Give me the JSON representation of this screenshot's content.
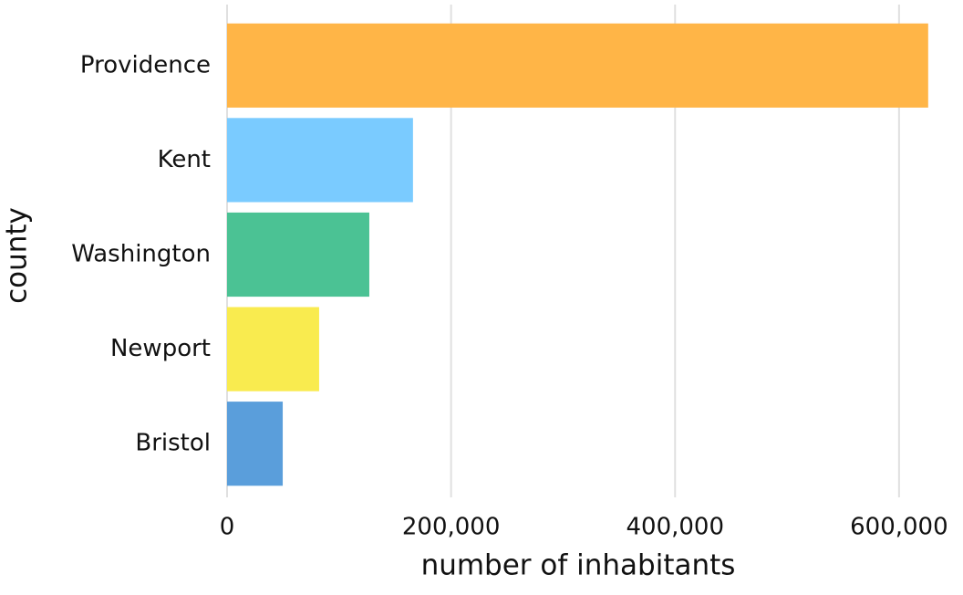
{
  "chart_data": {
    "type": "bar",
    "orientation": "horizontal",
    "x_label": "number of inhabitants",
    "y_label": "county",
    "categories": [
      "Providence",
      "Kent",
      "Washington",
      "Newport",
      "Bristol"
    ],
    "values": [
      626000,
      166000,
      127000,
      82200,
      49700
    ],
    "colors": [
      "#FFB547",
      "#7ACBFF",
      "#4BC294",
      "#F9EB4F",
      "#5A9EDB"
    ],
    "xlim": [
      0,
      640000
    ],
    "xticks": [
      0,
      {
        "value": 200000,
        "label": "200,000"
      },
      {
        "value": 400000,
        "label": "400,000"
      },
      {
        "value": 600000,
        "label": "600,000"
      }
    ],
    "grid": true
  }
}
